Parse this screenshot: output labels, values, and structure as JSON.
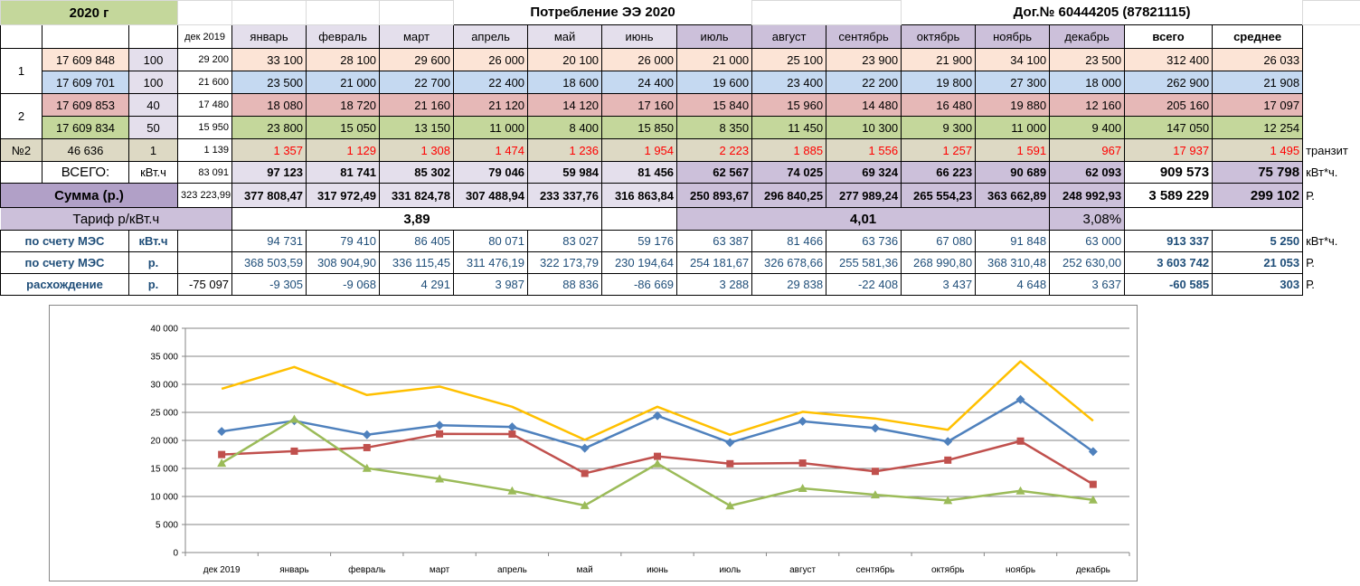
{
  "header": {
    "year": "2020 г",
    "title": "Потребление ЭЭ  2020",
    "contract": "Дог.№ 60444205 (87821115)"
  },
  "columns": [
    "дек 2019",
    "январь",
    "февраль",
    "март",
    "апрель",
    "май",
    "июнь",
    "июль",
    "август",
    "сентябрь",
    "октябрь",
    "ноябрь",
    "декабрь",
    "всего",
    "среднее"
  ],
  "rows": [
    {
      "group": "1",
      "meter": "17 609 848",
      "coef": "100",
      "dec": "29 200",
      "months": [
        "33 100",
        "28 100",
        "29 600",
        "26 000",
        "20 100",
        "26 000",
        "21 000",
        "25 100",
        "23 900",
        "21 900",
        "34 100",
        "23 500"
      ],
      "total": "312 400",
      "avg": "26 033",
      "color": "#fce4d6"
    },
    {
      "group": "",
      "meter": "17 609 701",
      "coef": "100",
      "dec": "21 600",
      "months": [
        "23 500",
        "21 000",
        "22 700",
        "22 400",
        "18 600",
        "24 400",
        "19 600",
        "23 400",
        "22 200",
        "19 800",
        "27 300",
        "18 000"
      ],
      "total": "262 900",
      "avg": "21 908",
      "color": "#c5d9f1"
    },
    {
      "group": "2",
      "meter": "17 609 853",
      "coef": "40",
      "dec": "17 480",
      "months": [
        "18 080",
        "18 720",
        "21 160",
        "21 120",
        "14 120",
        "17 160",
        "15 840",
        "15 960",
        "14 480",
        "16 480",
        "19 880",
        "12 160"
      ],
      "total": "205 160",
      "avg": "17 097",
      "color": "#e6b8b7"
    },
    {
      "group": "",
      "meter": "17 609 834",
      "coef": "50",
      "dec": "15 950",
      "months": [
        "23 800",
        "15 050",
        "13 150",
        "11 000",
        "8 400",
        "15 850",
        "8 350",
        "11 450",
        "10 300",
        "9 300",
        "11 000",
        "9 400"
      ],
      "total": "147 050",
      "avg": "12 254",
      "color": "#c4d79b"
    },
    {
      "group": "№2",
      "meter": "46 636",
      "coef": "1",
      "dec": "1 139",
      "months": [
        "1 357",
        "1 129",
        "1 308",
        "1 474",
        "1 236",
        "1 954",
        "2 223",
        "1 885",
        "1 556",
        "1 257",
        "1 591",
        "967"
      ],
      "total": "17 937",
      "avg": "1 495",
      "color": "#ddd9c4",
      "note": "транзит"
    }
  ],
  "total_row": {
    "label": "ВСЕГО:",
    "unit": "кВт.ч",
    "dec": "83 091",
    "months": [
      "97 123",
      "81 741",
      "85 302",
      "79 046",
      "59 984",
      "81 456",
      "62 567",
      "74 025",
      "69 324",
      "66 223",
      "90 689",
      "62 093"
    ],
    "total": "909 573",
    "avg": "75 798",
    "suffix": "кВт*ч."
  },
  "sum_row": {
    "label": "Сумма (р.)",
    "dec": "323 223,99",
    "months": [
      "377 808,47",
      "317 972,49",
      "331 824,78",
      "307 488,94",
      "233 337,76",
      "316 863,84",
      "250 893,67",
      "296 840,25",
      "277 989,24",
      "265 554,23",
      "363 662,89",
      "248 992,93"
    ],
    "total": "3 589 229",
    "avg": "299 102",
    "suffix": "Р."
  },
  "tariff_row": {
    "label": "Тариф р/кВт.ч",
    "h1": "3,89",
    "h2": "4,01",
    "pct": "3,08%"
  },
  "mes_kwh": {
    "label": "по счету МЭС",
    "unit": "кВт.ч",
    "months": [
      "94 731",
      "79 410",
      "86 405",
      "80 071",
      "83 027",
      "59 176",
      "63 387",
      "81 466",
      "63 736",
      "67 080",
      "91 848",
      "63 000"
    ],
    "total": "913 337",
    "avg": "5 250",
    "suffix": "кВт*ч."
  },
  "mes_rub": {
    "label": "по счету МЭС",
    "unit": "р.",
    "months": [
      "368 503,59",
      "308 904,90",
      "336 115,45",
      "311 476,19",
      "322 173,79",
      "230 194,64",
      "254 181,67",
      "326 678,66",
      "255 581,36",
      "268 990,80",
      "368 310,48",
      "252 630,00"
    ],
    "total": "3 603 742",
    "avg": "21 053",
    "suffix": "Р."
  },
  "diff_row": {
    "label": "расхождение",
    "unit": "р.",
    "dec": "-75 097",
    "months": [
      "-9 305",
      "-9 068",
      "4 291",
      "3 987",
      "88 836",
      "-86 669",
      "3 288",
      "29 838",
      "-22 408",
      "3 437",
      "4 648",
      "3 637"
    ],
    "total": "-60 585",
    "avg": "303",
    "suffix": "Р."
  },
  "chart_data": {
    "type": "line",
    "categories": [
      "дек 2019",
      "январь",
      "февраль",
      "март",
      "апрель",
      "май",
      "июнь",
      "июль",
      "август",
      "сентябрь",
      "октябрь",
      "ноябрь",
      "декабрь"
    ],
    "ylim": [
      0,
      40000
    ],
    "yticks": [
      "0",
      "5 000",
      "10 000",
      "15 000",
      "20 000",
      "25 000",
      "30 000",
      "35 000",
      "40 000"
    ],
    "grid": true,
    "series": [
      {
        "color": "#4f81bd",
        "marker": "diamond",
        "values": [
          21600,
          23500,
          21000,
          22700,
          22400,
          18600,
          24400,
          19600,
          23400,
          22200,
          19800,
          27300,
          18000
        ]
      },
      {
        "color": "#c0504d",
        "marker": "square",
        "values": [
          17480,
          18080,
          18720,
          21160,
          21120,
          14120,
          17160,
          15840,
          15960,
          14480,
          16480,
          19880,
          12160
        ]
      },
      {
        "color": "#9bbb59",
        "marker": "triangle",
        "values": [
          15950,
          23800,
          15050,
          13150,
          11000,
          8400,
          15850,
          8350,
          11450,
          10300,
          9300,
          11000,
          9400
        ]
      },
      {
        "color": "#ffc000",
        "marker": "none",
        "values": [
          29200,
          33100,
          28100,
          29600,
          26000,
          20100,
          26000,
          21000,
          25100,
          23900,
          21900,
          34100,
          23500
        ]
      }
    ]
  }
}
